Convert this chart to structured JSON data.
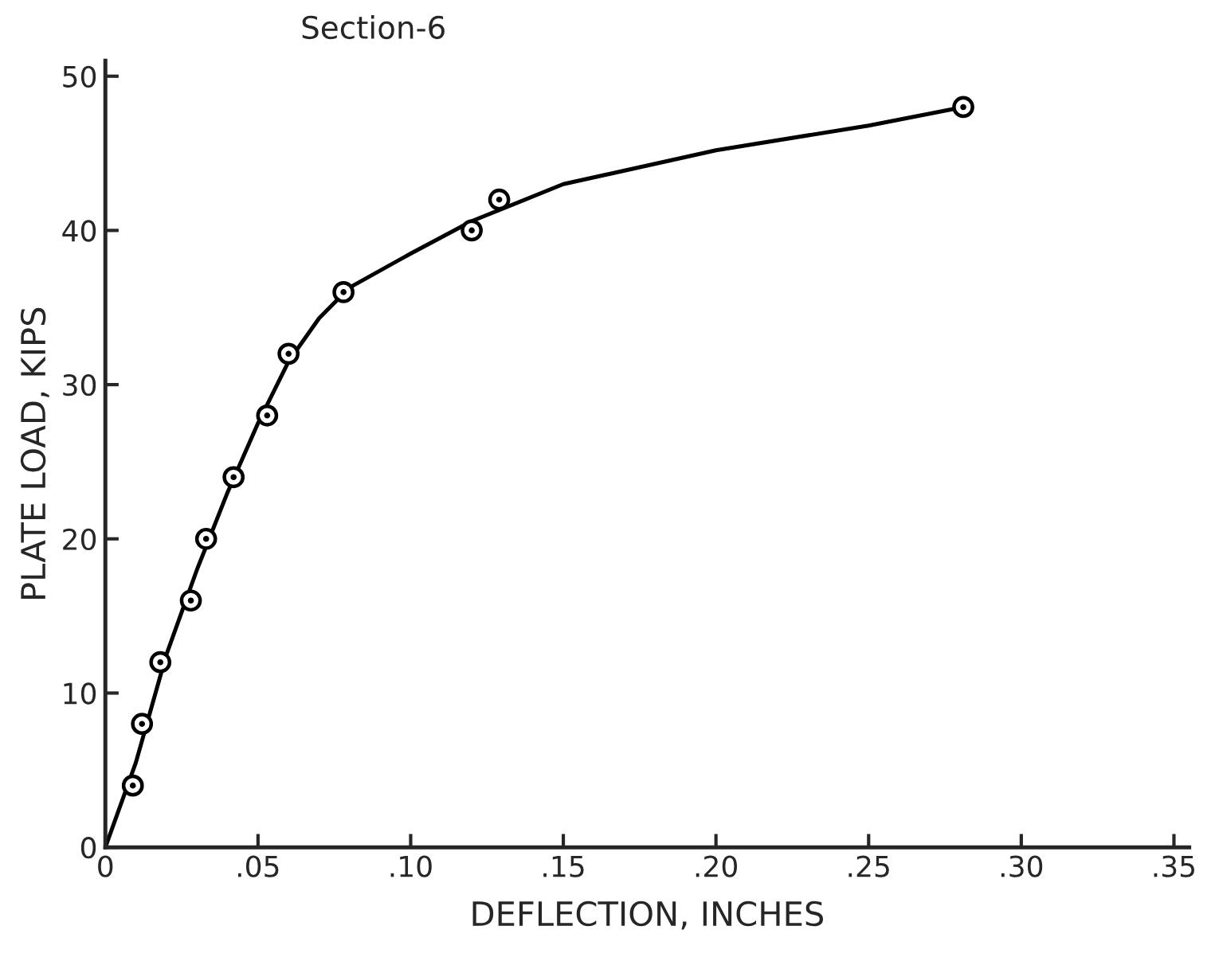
{
  "chart_data": {
    "type": "scatter",
    "title": "Section-6",
    "xlabel": "DEFLECTION, INCHES",
    "ylabel": "PLATE LOAD, KIPS",
    "series": [
      {
        "color": "#000000",
        "marker": "circle",
        "x": [
          0.009,
          0.012,
          0.018,
          0.028,
          0.033,
          0.042,
          0.053,
          0.06,
          0.078,
          0.12,
          0.129,
          0.281
        ],
        "values": [
          4,
          8,
          12,
          16,
          20,
          24,
          28,
          32,
          36,
          40,
          42,
          48
        ]
      },
      {
        "type": "line",
        "color": "#000000",
        "line_style": "solid",
        "x": [
          0,
          0.01,
          0.02,
          0.03,
          0.04,
          0.05,
          0.06,
          0.07,
          0.08,
          0.1,
          0.12,
          0.15,
          0.2,
          0.25,
          0.281
        ],
        "values": [
          0,
          5.5,
          12.5,
          18,
          23,
          27.5,
          31.5,
          34.3,
          36.3,
          38.5,
          40.6,
          43,
          45.2,
          46.8,
          48
        ]
      }
    ],
    "xlim": [
      0,
      0.355
    ],
    "ylim": [
      0,
      51
    ],
    "xticks": [
      0,
      {
        "value": 0.05,
        "label": ".05"
      },
      {
        "value": 0.1,
        "label": ".10"
      },
      {
        "value": 0.15,
        "label": ".15"
      },
      {
        "value": 0.2,
        "label": ".20"
      },
      {
        "value": 0.25,
        "label": ".25"
      },
      {
        "value": 0.3,
        "label": ".30"
      },
      {
        "value": 0.35,
        "label": ".35"
      }
    ],
    "yticks": [
      0,
      10,
      20,
      30,
      40,
      50
    ],
    "grid": false,
    "legend": false
  }
}
